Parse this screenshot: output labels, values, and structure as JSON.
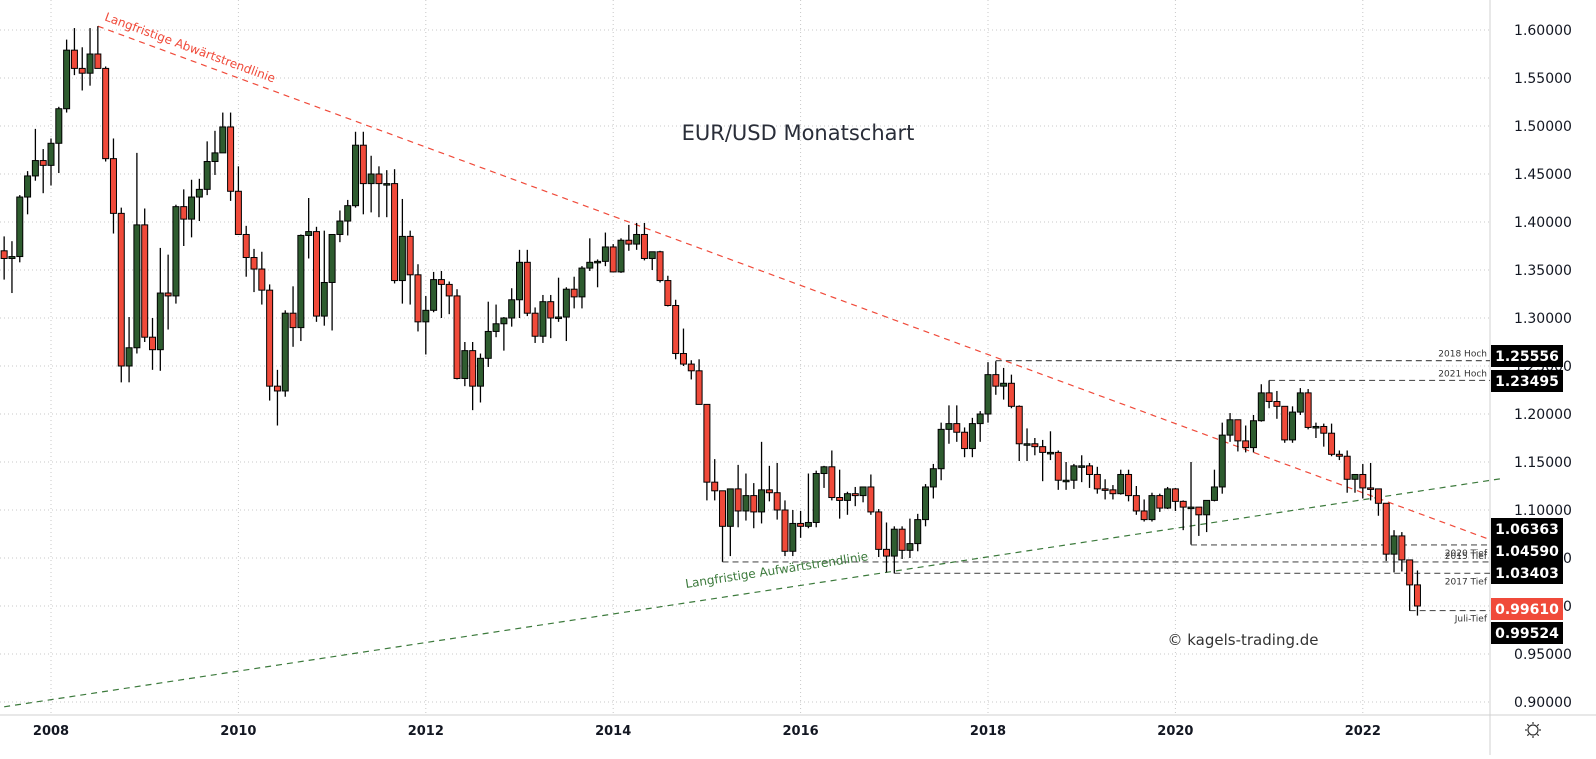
{
  "chart_data": {
    "type": "candlestick",
    "title": "EUR/USD Monatschart",
    "watermark": "© kagels-trading.de",
    "xlabel": "",
    "ylabel": "",
    "ylim": [
      0.88,
      1.615
    ],
    "grid": true,
    "colors": {
      "up": "#2e5c2f",
      "down": "#f04a3a",
      "border": "#000000",
      "grid": "#c8c8c8",
      "downtrend": "#f04a3a",
      "uptrend": "#3c7a3c"
    },
    "y_ticks": [
      "1.60000",
      "1.55000",
      "1.50000",
      "1.45000",
      "1.40000",
      "1.35000",
      "1.30000",
      "1.25000",
      "1.20000",
      "1.15000",
      "1.10000",
      "1.05000",
      "1.00000",
      "0.95000",
      "0.90000"
    ],
    "x_ticks": [
      "2008",
      "2010",
      "2012",
      "2014",
      "2016",
      "2018",
      "2020",
      "2022"
    ],
    "start_month": "2007-07",
    "ohlc": [
      [
        1.37,
        1.385,
        1.34,
        1.362
      ],
      [
        1.362,
        1.38,
        1.326,
        1.364
      ],
      [
        1.364,
        1.428,
        1.358,
        1.426
      ],
      [
        1.426,
        1.453,
        1.408,
        1.448
      ],
      [
        1.448,
        1.497,
        1.443,
        1.464
      ],
      [
        1.464,
        1.476,
        1.43,
        1.459
      ],
      [
        1.459,
        1.487,
        1.438,
        1.482
      ],
      [
        1.482,
        1.52,
        1.451,
        1.518
      ],
      [
        1.518,
        1.59,
        1.514,
        1.579
      ],
      [
        1.579,
        1.602,
        1.553,
        1.56
      ],
      [
        1.56,
        1.582,
        1.537,
        1.555
      ],
      [
        1.555,
        1.602,
        1.542,
        1.575
      ],
      [
        1.575,
        1.604,
        1.56,
        1.56
      ],
      [
        1.56,
        1.562,
        1.463,
        1.466
      ],
      [
        1.466,
        1.487,
        1.388,
        1.409
      ],
      [
        1.409,
        1.415,
        1.233,
        1.25
      ],
      [
        1.25,
        1.301,
        1.233,
        1.269
      ],
      [
        1.269,
        1.472,
        1.263,
        1.397
      ],
      [
        1.397,
        1.414,
        1.275,
        1.28
      ],
      [
        1.28,
        1.3,
        1.246,
        1.267
      ],
      [
        1.267,
        1.373,
        1.245,
        1.326
      ],
      [
        1.326,
        1.366,
        1.288,
        1.323
      ],
      [
        1.323,
        1.418,
        1.315,
        1.416
      ],
      [
        1.416,
        1.434,
        1.375,
        1.403
      ],
      [
        1.403,
        1.444,
        1.384,
        1.426
      ],
      [
        1.426,
        1.445,
        1.401,
        1.434
      ],
      [
        1.434,
        1.484,
        1.428,
        1.463
      ],
      [
        1.463,
        1.495,
        1.449,
        1.472
      ],
      [
        1.472,
        1.514,
        1.483,
        1.499
      ],
      [
        1.499,
        1.514,
        1.422,
        1.432
      ],
      [
        1.432,
        1.458,
        1.387,
        1.387
      ],
      [
        1.387,
        1.396,
        1.343,
        1.363
      ],
      [
        1.363,
        1.372,
        1.327,
        1.351
      ],
      [
        1.351,
        1.369,
        1.314,
        1.329
      ],
      [
        1.329,
        1.335,
        1.214,
        1.229
      ],
      [
        1.229,
        1.246,
        1.188,
        1.224
      ],
      [
        1.224,
        1.308,
        1.218,
        1.305
      ],
      [
        1.305,
        1.333,
        1.27,
        1.29
      ],
      [
        1.29,
        1.387,
        1.276,
        1.386
      ],
      [
        1.386,
        1.425,
        1.362,
        1.39
      ],
      [
        1.39,
        1.395,
        1.296,
        1.302
      ],
      [
        1.302,
        1.391,
        1.292,
        1.337
      ],
      [
        1.337,
        1.386,
        1.287,
        1.387
      ],
      [
        1.387,
        1.412,
        1.379,
        1.401
      ],
      [
        1.401,
        1.423,
        1.386,
        1.417
      ],
      [
        1.417,
        1.494,
        1.415,
        1.48
      ],
      [
        1.48,
        1.494,
        1.408,
        1.44
      ],
      [
        1.44,
        1.469,
        1.41,
        1.45
      ],
      [
        1.45,
        1.458,
        1.405,
        1.44
      ],
      [
        1.44,
        1.454,
        1.405,
        1.44
      ],
      [
        1.44,
        1.455,
        1.336,
        1.339
      ],
      [
        1.339,
        1.424,
        1.315,
        1.385
      ],
      [
        1.385,
        1.391,
        1.314,
        1.345
      ],
      [
        1.345,
        1.356,
        1.286,
        1.296
      ],
      [
        1.296,
        1.323,
        1.262,
        1.308
      ],
      [
        1.308,
        1.348,
        1.306,
        1.34
      ],
      [
        1.34,
        1.349,
        1.3,
        1.335
      ],
      [
        1.335,
        1.338,
        1.304,
        1.323
      ],
      [
        1.323,
        1.33,
        1.236,
        1.237
      ],
      [
        1.237,
        1.275,
        1.229,
        1.266
      ],
      [
        1.266,
        1.275,
        1.204,
        1.229
      ],
      [
        1.229,
        1.263,
        1.212,
        1.258
      ],
      [
        1.258,
        1.317,
        1.249,
        1.286
      ],
      [
        1.286,
        1.314,
        1.28,
        1.294
      ],
      [
        1.294,
        1.301,
        1.266,
        1.3
      ],
      [
        1.3,
        1.331,
        1.291,
        1.319
      ],
      [
        1.319,
        1.371,
        1.3,
        1.358
      ],
      [
        1.358,
        1.371,
        1.302,
        1.305
      ],
      [
        1.305,
        1.311,
        1.274,
        1.281
      ],
      [
        1.281,
        1.324,
        1.274,
        1.317
      ],
      [
        1.317,
        1.324,
        1.279,
        1.3
      ],
      [
        1.3,
        1.342,
        1.296,
        1.301
      ],
      [
        1.301,
        1.332,
        1.276,
        1.33
      ],
      [
        1.33,
        1.343,
        1.31,
        1.322
      ],
      [
        1.322,
        1.354,
        1.31,
        1.352
      ],
      [
        1.352,
        1.383,
        1.349,
        1.358
      ],
      [
        1.358,
        1.361,
        1.332,
        1.359
      ],
      [
        1.359,
        1.389,
        1.354,
        1.374
      ],
      [
        1.374,
        1.377,
        1.348,
        1.348
      ],
      [
        1.348,
        1.383,
        1.347,
        1.381
      ],
      [
        1.381,
        1.397,
        1.37,
        1.377
      ],
      [
        1.377,
        1.399,
        1.371,
        1.387
      ],
      [
        1.387,
        1.399,
        1.36,
        1.362
      ],
      [
        1.362,
        1.369,
        1.35,
        1.369
      ],
      [
        1.369,
        1.37,
        1.337,
        1.339
      ],
      [
        1.339,
        1.344,
        1.312,
        1.313
      ],
      [
        1.313,
        1.319,
        1.257,
        1.263
      ],
      [
        1.263,
        1.289,
        1.25,
        1.252
      ],
      [
        1.252,
        1.256,
        1.236,
        1.245
      ],
      [
        1.245,
        1.257,
        1.212,
        1.21
      ],
      [
        1.21,
        1.21,
        1.11,
        1.129
      ],
      [
        1.129,
        1.153,
        1.11,
        1.12
      ],
      [
        1.12,
        1.12,
        1.046,
        1.083
      ],
      [
        1.083,
        1.1,
        1.052,
        1.122
      ],
      [
        1.122,
        1.147,
        1.082,
        1.099
      ],
      [
        1.099,
        1.138,
        1.089,
        1.115
      ],
      [
        1.115,
        1.128,
        1.081,
        1.098
      ],
      [
        1.098,
        1.171,
        1.086,
        1.121
      ],
      [
        1.121,
        1.146,
        1.109,
        1.118
      ],
      [
        1.118,
        1.149,
        1.09,
        1.1
      ],
      [
        1.1,
        1.11,
        1.052,
        1.057
      ],
      [
        1.057,
        1.1,
        1.052,
        1.086
      ],
      [
        1.086,
        1.099,
        1.071,
        1.083
      ],
      [
        1.083,
        1.138,
        1.081,
        1.087
      ],
      [
        1.087,
        1.141,
        1.082,
        1.138
      ],
      [
        1.138,
        1.146,
        1.123,
        1.145
      ],
      [
        1.145,
        1.162,
        1.11,
        1.113
      ],
      [
        1.113,
        1.142,
        1.091,
        1.11
      ],
      [
        1.11,
        1.119,
        1.095,
        1.117
      ],
      [
        1.117,
        1.124,
        1.104,
        1.115
      ],
      [
        1.115,
        1.121,
        1.108,
        1.124
      ],
      [
        1.124,
        1.137,
        1.095,
        1.098
      ],
      [
        1.098,
        1.101,
        1.051,
        1.059
      ],
      [
        1.059,
        1.087,
        1.035,
        1.052
      ],
      [
        1.052,
        1.083,
        1.034,
        1.08
      ],
      [
        1.08,
        1.083,
        1.049,
        1.058
      ],
      [
        1.058,
        1.091,
        1.05,
        1.065
      ],
      [
        1.065,
        1.096,
        1.057,
        1.09
      ],
      [
        1.09,
        1.127,
        1.083,
        1.124
      ],
      [
        1.124,
        1.148,
        1.112,
        1.143
      ],
      [
        1.143,
        1.191,
        1.131,
        1.184
      ],
      [
        1.184,
        1.209,
        1.169,
        1.19
      ],
      [
        1.19,
        1.209,
        1.171,
        1.181
      ],
      [
        1.181,
        1.186,
        1.155,
        1.164
      ],
      [
        1.164,
        1.196,
        1.155,
        1.19
      ],
      [
        1.19,
        1.203,
        1.171,
        1.2
      ],
      [
        1.2,
        1.254,
        1.191,
        1.241
      ],
      [
        1.241,
        1.255,
        1.22,
        1.229
      ],
      [
        1.229,
        1.248,
        1.215,
        1.232
      ],
      [
        1.232,
        1.241,
        1.206,
        1.208
      ],
      [
        1.208,
        1.209,
        1.151,
        1.169
      ],
      [
        1.169,
        1.185,
        1.151,
        1.169
      ],
      [
        1.169,
        1.175,
        1.157,
        1.166
      ],
      [
        1.166,
        1.173,
        1.13,
        1.16
      ],
      [
        1.16,
        1.182,
        1.152,
        1.16
      ],
      [
        1.16,
        1.162,
        1.121,
        1.131
      ],
      [
        1.131,
        1.15,
        1.121,
        1.131
      ],
      [
        1.131,
        1.148,
        1.122,
        1.146
      ],
      [
        1.146,
        1.157,
        1.129,
        1.146
      ],
      [
        1.146,
        1.149,
        1.123,
        1.137
      ],
      [
        1.137,
        1.145,
        1.117,
        1.122
      ],
      [
        1.122,
        1.132,
        1.111,
        1.121
      ],
      [
        1.121,
        1.126,
        1.111,
        1.117
      ],
      [
        1.117,
        1.142,
        1.116,
        1.137
      ],
      [
        1.137,
        1.142,
        1.109,
        1.115
      ],
      [
        1.115,
        1.125,
        1.095,
        1.099
      ],
      [
        1.099,
        1.111,
        1.088,
        1.09
      ],
      [
        1.09,
        1.118,
        1.088,
        1.115
      ],
      [
        1.115,
        1.117,
        1.098,
        1.102
      ],
      [
        1.102,
        1.124,
        1.101,
        1.122
      ],
      [
        1.122,
        1.123,
        1.099,
        1.109
      ],
      [
        1.109,
        1.11,
        1.079,
        1.103
      ],
      [
        1.103,
        1.15,
        1.064,
        1.103
      ],
      [
        1.103,
        1.102,
        1.073,
        1.095
      ],
      [
        1.095,
        1.103,
        1.077,
        1.11
      ],
      [
        1.11,
        1.142,
        1.109,
        1.124
      ],
      [
        1.124,
        1.191,
        1.117,
        1.178
      ],
      [
        1.178,
        1.201,
        1.171,
        1.194
      ],
      [
        1.194,
        1.192,
        1.161,
        1.172
      ],
      [
        1.172,
        1.188,
        1.16,
        1.165
      ],
      [
        1.165,
        1.199,
        1.16,
        1.193
      ],
      [
        1.193,
        1.231,
        1.192,
        1.222
      ],
      [
        1.222,
        1.235,
        1.206,
        1.213
      ],
      [
        1.213,
        1.224,
        1.195,
        1.208
      ],
      [
        1.208,
        1.2,
        1.17,
        1.173
      ],
      [
        1.173,
        1.208,
        1.17,
        1.202
      ],
      [
        1.202,
        1.227,
        1.199,
        1.222
      ],
      [
        1.222,
        1.226,
        1.184,
        1.186
      ],
      [
        1.186,
        1.191,
        1.175,
        1.187
      ],
      [
        1.187,
        1.19,
        1.166,
        1.18
      ],
      [
        1.18,
        1.19,
        1.156,
        1.158
      ],
      [
        1.158,
        1.162,
        1.152,
        1.156
      ],
      [
        1.156,
        1.162,
        1.118,
        1.132
      ],
      [
        1.132,
        1.136,
        1.118,
        1.137
      ],
      [
        1.137,
        1.148,
        1.112,
        1.123
      ],
      [
        1.123,
        1.149,
        1.11,
        1.122
      ],
      [
        1.122,
        1.119,
        1.094,
        1.107
      ],
      [
        1.107,
        1.095,
        1.047,
        1.054
      ],
      [
        1.054,
        1.079,
        1.035,
        1.073
      ],
      [
        1.073,
        1.077,
        1.036,
        1.048
      ],
      [
        1.048,
        1.048,
        0.995,
        1.022
      ],
      [
        1.022,
        1.037,
        0.99,
        1.0
      ]
    ],
    "annotations": [
      {
        "type": "trendline",
        "label": "Langfristige Abwärtstrendlinie",
        "color": "#f04a3a",
        "from": [
          "2008-07",
          1.604
        ],
        "to": [
          "2023-07",
          1.064
        ]
      },
      {
        "type": "trendline",
        "label": "Langfristige Aufwärtstrendlinie",
        "color": "#3c7a3c",
        "from": [
          "2007-07",
          0.895
        ],
        "to": [
          "2023-07",
          1.133
        ]
      }
    ],
    "levels": [
      {
        "label": "2018 Hoch",
        "price": 1.25556,
        "from": "2018-02"
      },
      {
        "label": "2021 Hoch",
        "price": 1.23495,
        "from": "2021-01"
      },
      {
        "label": "2020 Tief",
        "price": 1.06363,
        "from": "2020-03"
      },
      {
        "label": "2015 Tief",
        "price": 1.0459,
        "from": "2015-03"
      },
      {
        "label": "2017 Tief",
        "price": 1.03403,
        "from": "2017-01"
      },
      {
        "label": "Juli-Tief",
        "price": 0.99524,
        "from": "2022-07"
      }
    ],
    "price_tags": [
      {
        "price": "1.25556",
        "bg": "#000000"
      },
      {
        "price": "1.23495",
        "bg": "#000000"
      },
      {
        "price": "1.06363",
        "bg": "#000000"
      },
      {
        "price": "1.04590",
        "bg": "#000000"
      },
      {
        "price": "1.03403",
        "bg": "#000000"
      },
      {
        "price": "0.99610",
        "bg": "#f04a3a"
      },
      {
        "price": "0.99524",
        "bg": "#000000"
      }
    ]
  },
  "toolbar": {
    "settings_icon": "gear-icon"
  }
}
